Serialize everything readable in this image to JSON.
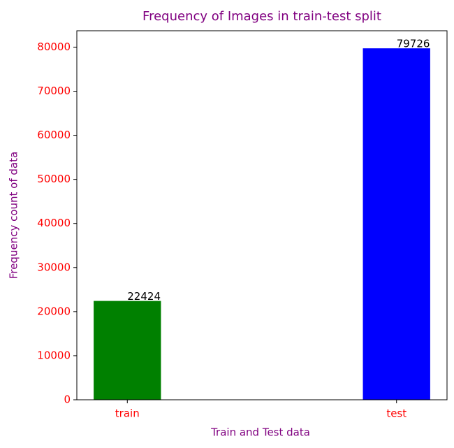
{
  "chart_data": {
    "type": "bar",
    "title": "Frequency of Images in train-test split",
    "x_label": "Train and Test data",
    "y_label": "Frequency count of data",
    "categories": [
      "train",
      "test"
    ],
    "values": [
      22424,
      79726
    ],
    "colors": [
      "green",
      "blue"
    ],
    "ylim": [
      0,
      83712
    ],
    "yticks": [
      0,
      10000,
      20000,
      30000,
      40000,
      50000,
      60000,
      70000,
      80000
    ],
    "grid": false
  }
}
